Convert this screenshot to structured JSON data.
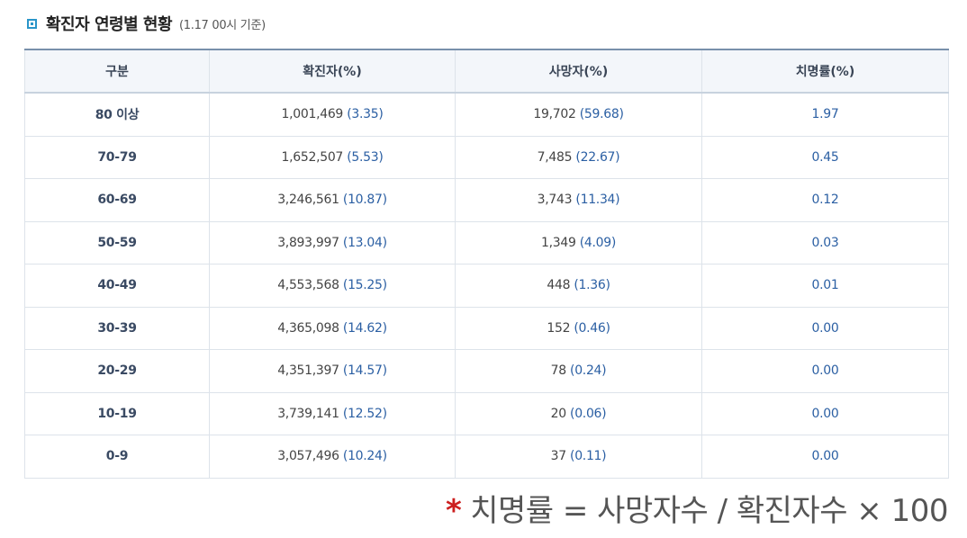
{
  "header": {
    "title": "확진자 연령별 현황",
    "subtitle": "(1.17 00시 기준)"
  },
  "table": {
    "columns": [
      "구분",
      "확진자(%)",
      "사망자(%)",
      "치명률(%)"
    ],
    "rows": [
      {
        "group": "80 이상",
        "cases": "1,001,469",
        "cases_pct": "(3.35)",
        "deaths": "19,702",
        "deaths_pct": "(59.68)",
        "fatality": "1.97"
      },
      {
        "group": "70-79",
        "cases": "1,652,507",
        "cases_pct": "(5.53)",
        "deaths": "7,485",
        "deaths_pct": "(22.67)",
        "fatality": "0.45"
      },
      {
        "group": "60-69",
        "cases": "3,246,561",
        "cases_pct": "(10.87)",
        "deaths": "3,743",
        "deaths_pct": "(11.34)",
        "fatality": "0.12"
      },
      {
        "group": "50-59",
        "cases": "3,893,997",
        "cases_pct": "(13.04)",
        "deaths": "1,349",
        "deaths_pct": "(4.09)",
        "fatality": "0.03"
      },
      {
        "group": "40-49",
        "cases": "4,553,568",
        "cases_pct": "(15.25)",
        "deaths": "448",
        "deaths_pct": "(1.36)",
        "fatality": "0.01"
      },
      {
        "group": "30-39",
        "cases": "4,365,098",
        "cases_pct": "(14.62)",
        "deaths": "152",
        "deaths_pct": "(0.46)",
        "fatality": "0.00"
      },
      {
        "group": "20-29",
        "cases": "4,351,397",
        "cases_pct": "(14.57)",
        "deaths": "78",
        "deaths_pct": "(0.24)",
        "fatality": "0.00"
      },
      {
        "group": "10-19",
        "cases": "3,739,141",
        "cases_pct": "(12.52)",
        "deaths": "20",
        "deaths_pct": "(0.06)",
        "fatality": "0.00"
      },
      {
        "group": "0-9",
        "cases": "3,057,496",
        "cases_pct": "(10.24)",
        "deaths": "37",
        "deaths_pct": "(0.11)",
        "fatality": "0.00"
      }
    ]
  },
  "footnote": {
    "marker": "*",
    "formula": "치명률 = 사망자수 / 확진자수 × 100"
  },
  "colors": {
    "accent": "#2a95c9",
    "percent_text": "#2b5fa3",
    "footnote_marker": "#cc1f1f"
  }
}
